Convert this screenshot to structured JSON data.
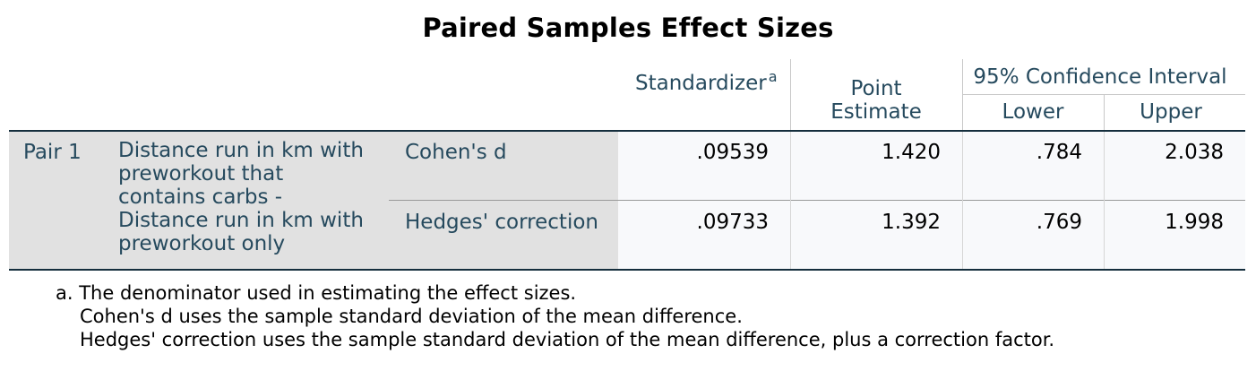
{
  "title": "Paired Samples Effect Sizes",
  "header": {
    "standardizer": "Standardizer",
    "standardizer_sup": "a",
    "point_estimate_line1": "Point",
    "point_estimate_line2": "Estimate",
    "ci": "95% Confidence Interval",
    "lower": "Lower",
    "upper": "Upper"
  },
  "pair": {
    "label": "Pair 1",
    "desc_lines": [
      "Distance run in km with",
      "preworkout that",
      "contains carbs -",
      "Distance run in km with",
      "preworkout only"
    ]
  },
  "rows": [
    {
      "measure": "Cohen's d",
      "standardizer": ".09539",
      "point_estimate": "1.420",
      "lower": ".784",
      "upper": "2.038"
    },
    {
      "measure": "Hedges' correction",
      "standardizer": ".09733",
      "point_estimate": "1.392",
      "lower": ".769",
      "upper": "1.998"
    }
  ],
  "footnotes": [
    "a. The denominator used in estimating the effect sizes.",
    "Cohen's d uses the sample standard deviation of the mean difference.",
    "Hedges' correction uses the sample standard deviation of the mean difference, plus a correction factor."
  ]
}
